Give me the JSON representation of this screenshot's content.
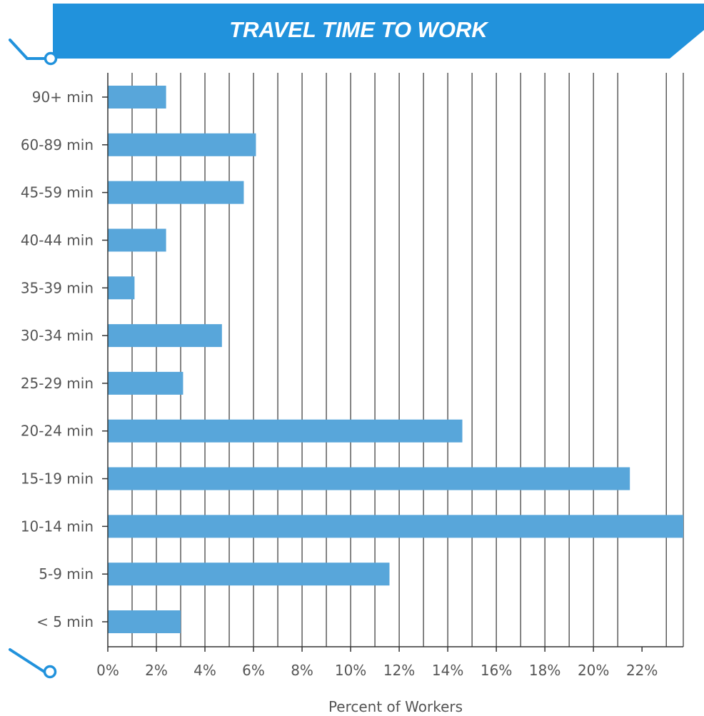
{
  "colors": {
    "banner": "#2192dc",
    "bar": "#58a6da",
    "grid": "#333333",
    "decor": "#2192dc"
  },
  "chart_data": {
    "type": "bar",
    "orientation": "horizontal",
    "title": "TRAVEL TIME TO WORK",
    "xlabel": "Percent of Workers",
    "ylabel": "",
    "categories": [
      "90+ min",
      "60-89 min",
      "45-59 min",
      "40-44 min",
      "35-39 min",
      "30-34 min",
      "25-29 min",
      "20-24 min",
      "15-19 min",
      "10-14 min",
      "5-9 min",
      "< 5 min"
    ],
    "values": [
      2.4,
      6.1,
      5.6,
      2.4,
      1.1,
      4.7,
      3.1,
      14.6,
      21.5,
      23.7,
      11.6,
      3.0
    ],
    "xlim": [
      0,
      23.7
    ],
    "xticks": [
      0,
      2,
      4,
      6,
      8,
      10,
      12,
      14,
      16,
      18,
      20,
      22
    ],
    "xtick_labels": [
      "0%",
      "2%",
      "4%",
      "6%",
      "8%",
      "10%",
      "12%",
      "14%",
      "16%",
      "18%",
      "20%",
      "22%"
    ],
    "grid": true
  }
}
